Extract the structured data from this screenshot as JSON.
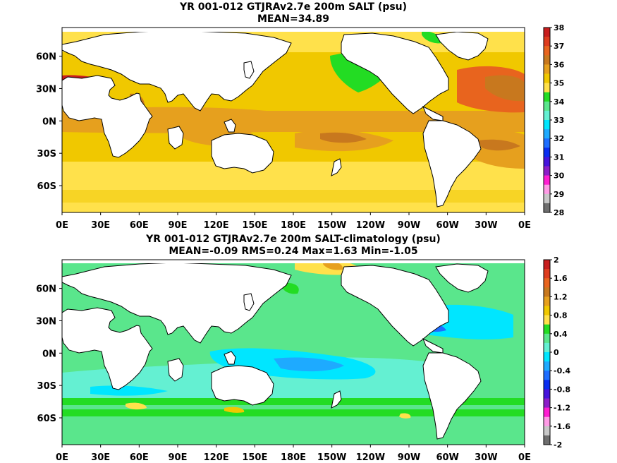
{
  "chart_data": [
    {
      "type": "heatmap",
      "title": "YR 001-012 GTJRAv2.7e 200m SALT (psu)",
      "subtitle": "MEAN=34.89",
      "x_ticks": [
        "0E",
        "30E",
        "60E",
        "90E",
        "120E",
        "150E",
        "180E",
        "150W",
        "120W",
        "90W",
        "60W",
        "30W",
        "0E"
      ],
      "y_ticks": [
        "60N",
        "30N",
        "0N",
        "30S",
        "60S"
      ],
      "colorbar": {
        "labels": [
          "38",
          "37",
          "36",
          "35",
          "34",
          "33",
          "32",
          "31",
          "30",
          "29",
          "28"
        ],
        "colors": [
          "#c81e1e",
          "#de3c1e",
          "#e8641e",
          "#c8781e",
          "#e6a01e",
          "#f0c800",
          "#ffe14b",
          "#23dc23",
          "#5ae68c",
          "#64f0d2",
          "#00e6ff",
          "#1eaaff",
          "#1e6eff",
          "#0a2df0",
          "#4614dc",
          "#8c1ec8",
          "#ff1ed2",
          "#ff9be6",
          "#c8c8c8",
          "#6e6e6e"
        ]
      },
      "mean": 34.89
    },
    {
      "type": "heatmap",
      "title": "YR 001-012 GTJRAv2.7e 200m SALT-climatology (psu)",
      "subtitle": "MEAN=-0.09   RMS=0.24   Max=1.63   Min=-1.05",
      "x_ticks": [
        "0E",
        "30E",
        "60E",
        "90E",
        "120E",
        "150E",
        "180E",
        "150W",
        "120W",
        "90W",
        "60W",
        "30W",
        "0E"
      ],
      "y_ticks": [
        "60N",
        "30N",
        "0N",
        "30S",
        "60S"
      ],
      "colorbar": {
        "labels": [
          "2",
          "1.6",
          "1.2",
          "0.8",
          "0.4",
          "0",
          "-0.4",
          "-0.8",
          "-1.2",
          "-1.6",
          "-2"
        ],
        "colors": [
          "#c81e1e",
          "#de3c1e",
          "#e8641e",
          "#c8781e",
          "#e6a01e",
          "#f0c800",
          "#ffe14b",
          "#23dc23",
          "#5ae68c",
          "#64f0d2",
          "#00e6ff",
          "#1eaaff",
          "#1e6eff",
          "#0a2df0",
          "#4614dc",
          "#8c1ec8",
          "#ff1ed2",
          "#ff9be6",
          "#c8c8c8",
          "#6e6e6e"
        ]
      },
      "mean": -0.09,
      "rms": 0.24,
      "max": 1.63,
      "min": -1.05
    }
  ]
}
